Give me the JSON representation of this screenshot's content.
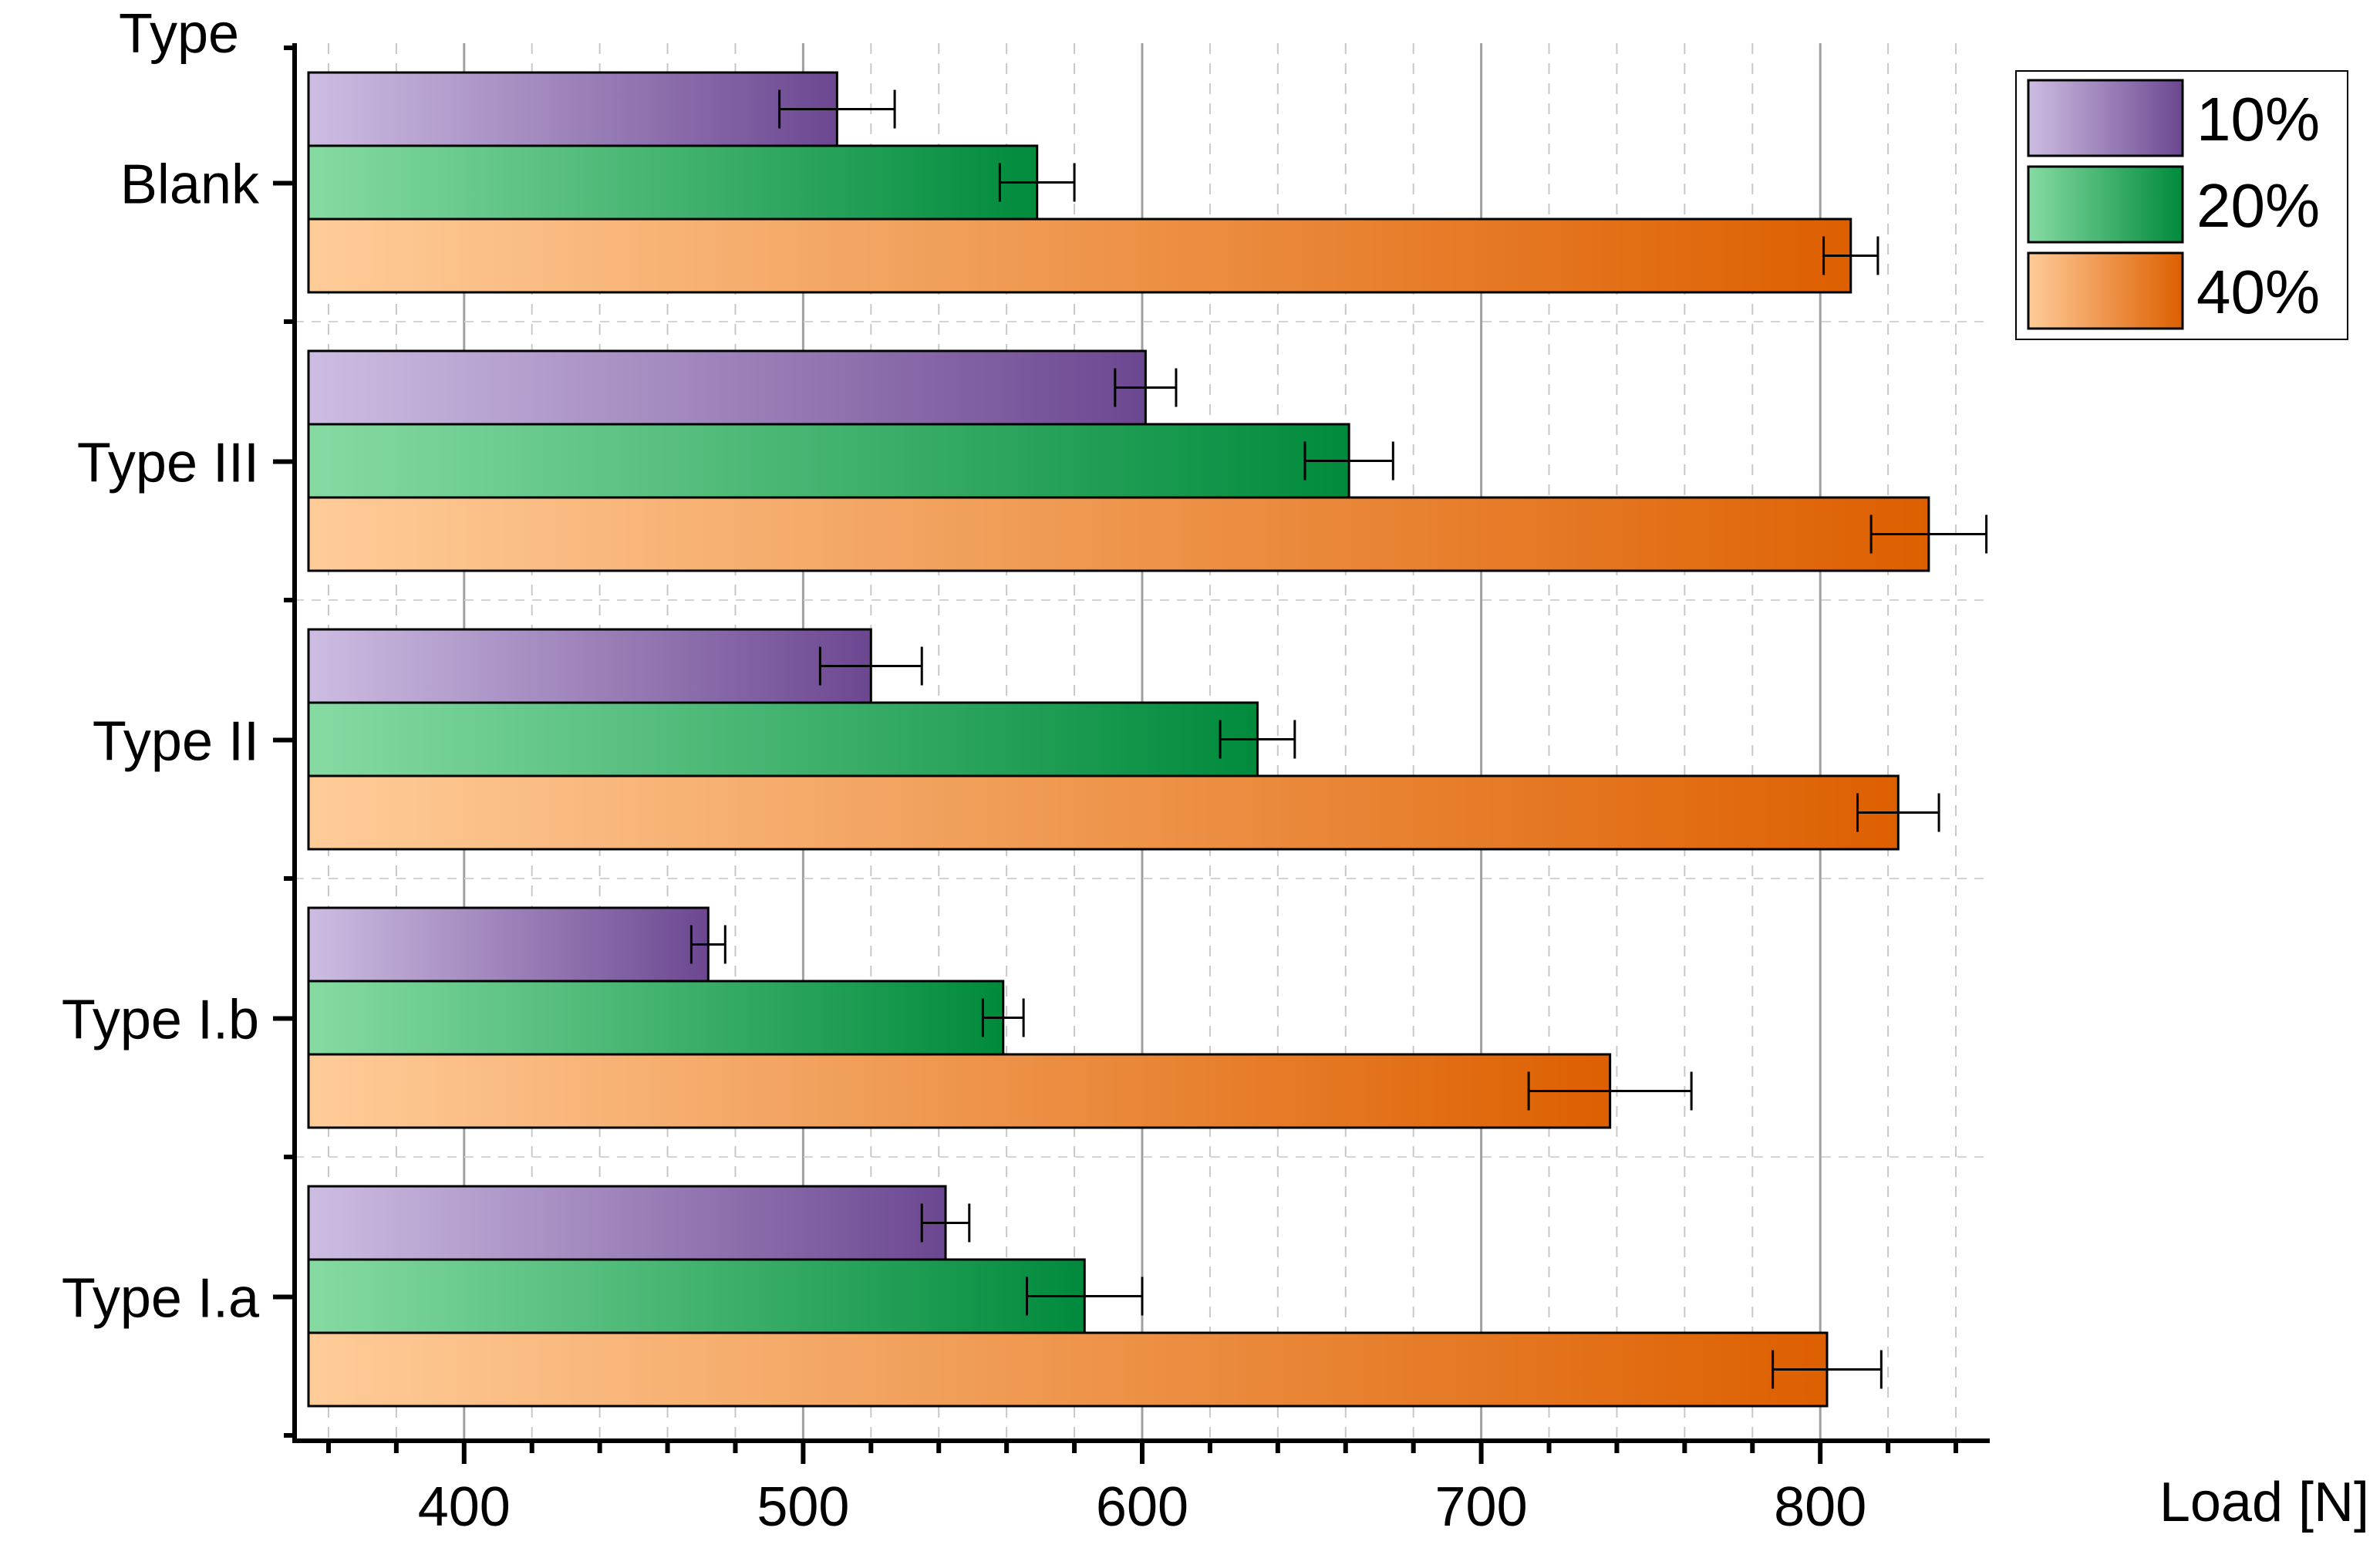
{
  "chart_data": {
    "type": "bar",
    "orientation": "horizontal",
    "title": "",
    "xlabel": "Load [N]",
    "ylabel": "Type",
    "xlim": [
      350,
      850
    ],
    "xticks": [
      400,
      500,
      600,
      700,
      800
    ],
    "grid": true,
    "legend_position": "top-right",
    "categories": [
      "Blank",
      "Type III",
      "Type II",
      "Type I.b",
      "Type I.a"
    ],
    "series": [
      {
        "name": "10%",
        "values": [
          510,
          601,
          520,
          472,
          542
        ],
        "errors": [
          17,
          9,
          15,
          5,
          7
        ],
        "gradient": [
          "#cdbde2",
          "#6c4791"
        ]
      },
      {
        "name": "20%",
        "values": [
          569,
          661,
          634,
          559,
          583
        ],
        "errors": [
          11,
          13,
          11,
          6,
          17
        ],
        "gradient": [
          "#86dba3",
          "#008a3c"
        ]
      },
      {
        "name": "40%",
        "values": [
          809,
          832,
          823,
          738,
          802
        ],
        "errors": [
          8,
          17,
          12,
          24,
          16
        ],
        "gradient": [
          "#ffcc99",
          "#dd5f00"
        ]
      }
    ]
  }
}
